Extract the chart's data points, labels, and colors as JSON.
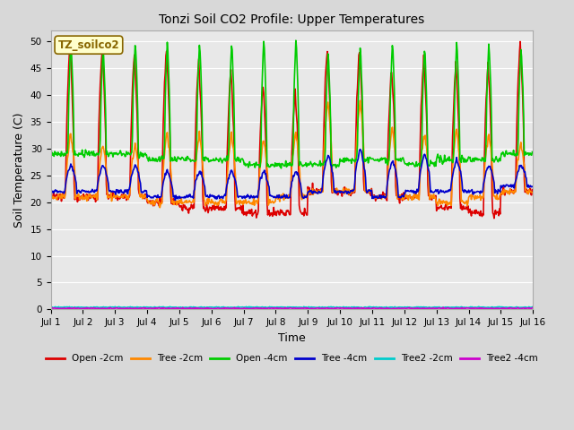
{
  "title": "Tonzi Soil CO2 Profile: Upper Temperatures",
  "xlabel": "Time",
  "ylabel": "Soil Temperature (C)",
  "ylim": [
    0,
    52
  ],
  "yticks": [
    0,
    5,
    10,
    15,
    20,
    25,
    30,
    35,
    40,
    45,
    50
  ],
  "x_labels": [
    "Jul 1",
    "Jul 2",
    "Jul 3",
    "Jul 4",
    "Jul 5",
    "Jul 6",
    "Jul 7",
    "Jul 8",
    "Jul 9",
    "Jul 10",
    "Jul 11",
    "Jul 12",
    "Jul 13",
    "Jul 14",
    "Jul 15",
    "Jul 16"
  ],
  "n_days": 15,
  "pts_per_day": 48,
  "series": {
    "Open -2cm": {
      "color": "#dd0000",
      "lw": 1.2
    },
    "Tree -2cm": {
      "color": "#ff8800",
      "lw": 1.2
    },
    "Open -4cm": {
      "color": "#00cc00",
      "lw": 1.2
    },
    "Tree -4cm": {
      "color": "#0000cc",
      "lw": 1.2
    },
    "Tree2 -2cm": {
      "color": "#00cccc",
      "lw": 1.2
    },
    "Tree2 -4cm": {
      "color": "#cc00cc",
      "lw": 1.2
    }
  },
  "label_box": "TZ_soilco2",
  "label_box_color": "#ffffcc",
  "label_box_edge": "#886600",
  "bg_color": "#d8d8d8",
  "plot_bg_color": "#e8e8e8",
  "fig_width": 6.4,
  "fig_height": 4.8,
  "dpi": 100
}
